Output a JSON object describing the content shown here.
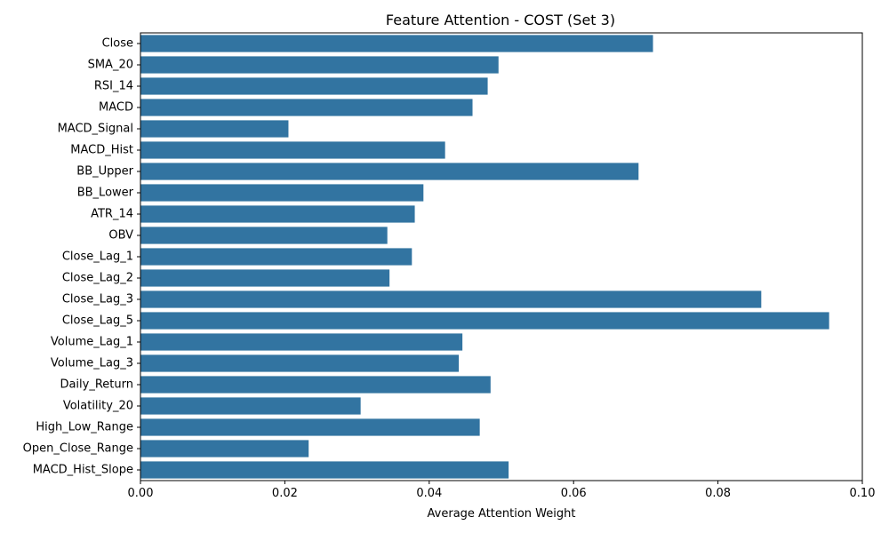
{
  "chart_data": {
    "type": "bar",
    "orientation": "horizontal",
    "title": "Feature Attention - COST (Set 3)",
    "xlabel": "Average Attention Weight",
    "ylabel": "",
    "xlim": [
      0,
      0.1
    ],
    "xticks": [
      0.0,
      0.02,
      0.04,
      0.06,
      0.08,
      0.1
    ],
    "xtick_labels": [
      "0.00",
      "0.02",
      "0.04",
      "0.06",
      "0.08",
      "0.10"
    ],
    "grid": false,
    "bar_color": "#3274a1",
    "categories": [
      "Close",
      "SMA_20",
      "RSI_14",
      "MACD",
      "MACD_Signal",
      "MACD_Hist",
      "BB_Upper",
      "BB_Lower",
      "ATR_14",
      "OBV",
      "Close_Lag_1",
      "Close_Lag_2",
      "Close_Lag_3",
      "Close_Lag_5",
      "Volume_Lag_1",
      "Volume_Lag_3",
      "Daily_Return",
      "Volatility_20",
      "High_Low_Range",
      "Open_Close_Range",
      "MACD_Hist_Slope"
    ],
    "values": [
      0.071,
      0.0496,
      0.0481,
      0.046,
      0.0205,
      0.0422,
      0.069,
      0.0392,
      0.038,
      0.0342,
      0.0376,
      0.0345,
      0.086,
      0.0954,
      0.0446,
      0.0441,
      0.0485,
      0.0305,
      0.047,
      0.0233,
      0.051
    ]
  }
}
